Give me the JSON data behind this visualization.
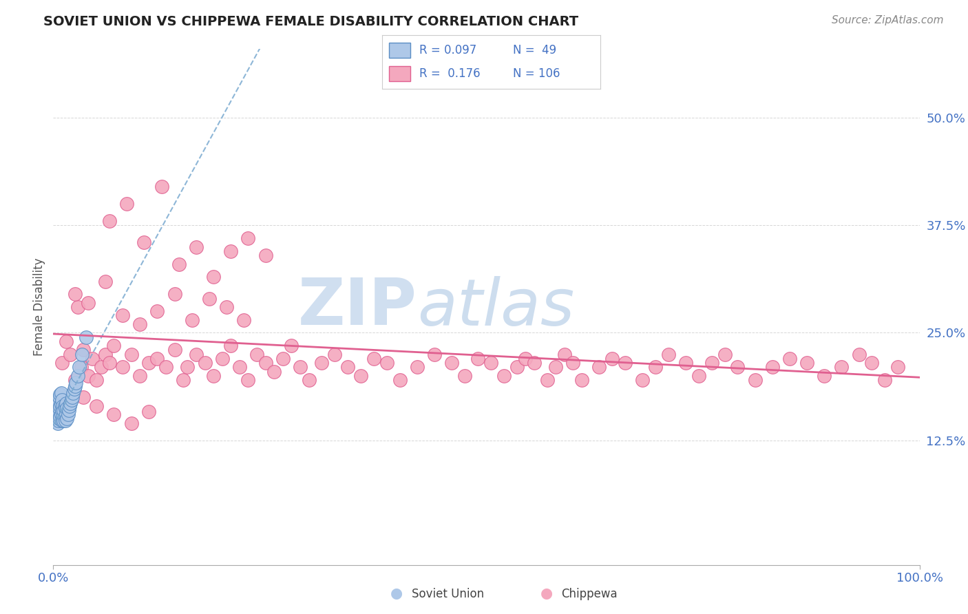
{
  "title": "SOVIET UNION VS CHIPPEWA FEMALE DISABILITY CORRELATION CHART",
  "source": "Source: ZipAtlas.com",
  "ylabel": "Female Disability",
  "ytick_labels": [
    "12.5%",
    "25.0%",
    "37.5%",
    "50.0%"
  ],
  "ytick_values": [
    0.125,
    0.25,
    0.375,
    0.5
  ],
  "xlim": [
    0.0,
    1.0
  ],
  "ylim": [
    -0.02,
    0.58
  ],
  "color_soviet": "#aec8e8",
  "color_soviet_edge": "#5b8ec4",
  "color_chippewa": "#f4a8be",
  "color_chippewa_edge": "#e06090",
  "color_trendline_soviet": "#7aaad0",
  "color_trendline_chippewa": "#e06090",
  "background_color": "#ffffff",
  "watermark_color": "#d0dff0",
  "soviet_x": [
    0.002,
    0.003,
    0.003,
    0.004,
    0.004,
    0.005,
    0.005,
    0.005,
    0.006,
    0.006,
    0.006,
    0.007,
    0.007,
    0.007,
    0.008,
    0.008,
    0.008,
    0.009,
    0.009,
    0.009,
    0.01,
    0.01,
    0.01,
    0.011,
    0.011,
    0.012,
    0.012,
    0.013,
    0.013,
    0.014,
    0.014,
    0.015,
    0.015,
    0.016,
    0.016,
    0.017,
    0.018,
    0.019,
    0.02,
    0.021,
    0.022,
    0.023,
    0.024,
    0.025,
    0.026,
    0.028,
    0.03,
    0.033,
    0.038
  ],
  "soviet_y": [
    0.155,
    0.16,
    0.148,
    0.152,
    0.165,
    0.145,
    0.158,
    0.17,
    0.148,
    0.156,
    0.168,
    0.15,
    0.162,
    0.175,
    0.153,
    0.165,
    0.178,
    0.155,
    0.167,
    0.18,
    0.148,
    0.16,
    0.172,
    0.152,
    0.165,
    0.148,
    0.16,
    0.152,
    0.165,
    0.148,
    0.162,
    0.155,
    0.168,
    0.15,
    0.162,
    0.155,
    0.16,
    0.165,
    0.168,
    0.172,
    0.175,
    0.18,
    0.185,
    0.188,
    0.192,
    0.2,
    0.21,
    0.225,
    0.245
  ],
  "chippewa_x": [
    0.01,
    0.015,
    0.02,
    0.025,
    0.028,
    0.032,
    0.035,
    0.04,
    0.045,
    0.05,
    0.055,
    0.06,
    0.065,
    0.07,
    0.08,
    0.09,
    0.1,
    0.11,
    0.12,
    0.13,
    0.14,
    0.15,
    0.155,
    0.165,
    0.175,
    0.185,
    0.195,
    0.205,
    0.215,
    0.225,
    0.235,
    0.245,
    0.255,
    0.265,
    0.275,
    0.285,
    0.295,
    0.31,
    0.325,
    0.34,
    0.355,
    0.37,
    0.385,
    0.4,
    0.42,
    0.44,
    0.46,
    0.475,
    0.49,
    0.505,
    0.52,
    0.535,
    0.545,
    0.555,
    0.57,
    0.58,
    0.59,
    0.6,
    0.61,
    0.63,
    0.645,
    0.66,
    0.68,
    0.695,
    0.71,
    0.73,
    0.745,
    0.76,
    0.775,
    0.79,
    0.81,
    0.83,
    0.85,
    0.87,
    0.89,
    0.91,
    0.93,
    0.945,
    0.96,
    0.975,
    0.035,
    0.05,
    0.07,
    0.09,
    0.11,
    0.025,
    0.04,
    0.06,
    0.08,
    0.1,
    0.12,
    0.14,
    0.16,
    0.18,
    0.2,
    0.22,
    0.065,
    0.085,
    0.105,
    0.125,
    0.145,
    0.165,
    0.185,
    0.205,
    0.225,
    0.245
  ],
  "chippewa_y": [
    0.215,
    0.24,
    0.225,
    0.195,
    0.28,
    0.21,
    0.23,
    0.2,
    0.22,
    0.195,
    0.21,
    0.225,
    0.215,
    0.235,
    0.21,
    0.225,
    0.2,
    0.215,
    0.22,
    0.21,
    0.23,
    0.195,
    0.21,
    0.225,
    0.215,
    0.2,
    0.22,
    0.235,
    0.21,
    0.195,
    0.225,
    0.215,
    0.205,
    0.22,
    0.235,
    0.21,
    0.195,
    0.215,
    0.225,
    0.21,
    0.2,
    0.22,
    0.215,
    0.195,
    0.21,
    0.225,
    0.215,
    0.2,
    0.22,
    0.215,
    0.2,
    0.21,
    0.22,
    0.215,
    0.195,
    0.21,
    0.225,
    0.215,
    0.195,
    0.21,
    0.22,
    0.215,
    0.195,
    0.21,
    0.225,
    0.215,
    0.2,
    0.215,
    0.225,
    0.21,
    0.195,
    0.21,
    0.22,
    0.215,
    0.2,
    0.21,
    0.225,
    0.215,
    0.195,
    0.21,
    0.175,
    0.165,
    0.155,
    0.145,
    0.158,
    0.295,
    0.285,
    0.31,
    0.27,
    0.26,
    0.275,
    0.295,
    0.265,
    0.29,
    0.28,
    0.265,
    0.38,
    0.4,
    0.355,
    0.42,
    0.33,
    0.35,
    0.315,
    0.345,
    0.36,
    0.34
  ],
  "soviet_trend_x": [
    0.0,
    0.038
  ],
  "soviet_trend_y_start": 0.148,
  "soviet_trend_y_end": 0.26,
  "chippewa_trend_y_start": 0.195,
  "chippewa_trend_y_end": 0.22
}
